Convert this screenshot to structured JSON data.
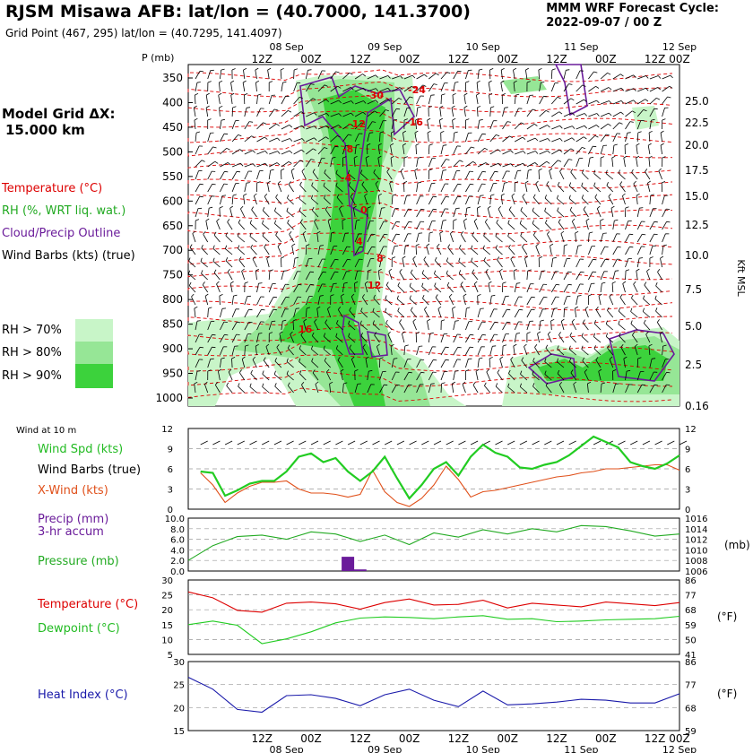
{
  "header": {
    "title": "RJSM Misawa AFB:  lat/lon = (40.7000, 141.3700)",
    "subtitle": "Grid Point (467, 295) lat/lon = (40.7295, 141.4097)",
    "cycle_line1": "MMM WRF Forecast Cycle:",
    "cycle_line2": "2022-09-07 / 00  Z"
  },
  "left_legend": {
    "model_grid_line1": "Model Grid ΔX:",
    "model_grid_line2": "15.000 km",
    "temperature": "Temperature (°C)",
    "rh": "RH (%, WRT liq. wat.)",
    "cloud": "Cloud/Precip Outline",
    "barbs": "Wind Barbs (kts) (true)",
    "rh70": "RH > 70%",
    "rh80": "RH > 80%",
    "rh90": "RH > 90%",
    "wind10m": "Wind at 10 m",
    "wind_spd": "Wind Spd (kts)",
    "wind_barbs": "Wind Barbs (true)",
    "xwind": "X-Wind (kts)",
    "precip1": "Precip (mm)",
    "precip2": "3-hr accum",
    "pressure": "Pressure (mb)",
    "temp2": "Temperature (°C)",
    "dew": "Dewpoint (°C)",
    "heat": "Heat Index (°C)"
  },
  "axes": {
    "p_label": "P  (mb)",
    "kft_label": "Kft MSL",
    "mb_label": "(mb)",
    "degF_label": "(°F)",
    "time_top_ticks": [
      "12Z",
      "00Z",
      "12Z",
      "00Z",
      "12Z",
      "00Z",
      "12Z",
      "00Z",
      "12Z",
      "00Z"
    ],
    "dates": [
      "08 Sep",
      "09 Sep",
      "10 Sep",
      "11 Sep",
      "12 Sep"
    ],
    "pressure_levels": [
      "350",
      "400",
      "450",
      "500",
      "550",
      "600",
      "650",
      "700",
      "750",
      "800",
      "850",
      "900",
      "950",
      "1000"
    ],
    "kft_ticks": [
      "25.0",
      "22.5",
      "20.0",
      "17.5",
      "15.0",
      "12.5",
      "10.0",
      "7.5",
      "5.0",
      "2.5",
      "0.16"
    ],
    "wind_left": [
      "12",
      "9",
      "6",
      "3",
      "0"
    ],
    "wind_right": [
      "12",
      "9",
      "6",
      "3",
      "0"
    ],
    "precip_left": [
      "10.0",
      "8.0",
      "6.0",
      "4.0",
      "2.0",
      "0.0"
    ],
    "pressure_right": [
      "1016",
      "1014",
      "1012",
      "1010",
      "1008",
      "1006"
    ],
    "temp_left": [
      "30",
      "25",
      "20",
      "15",
      "10",
      "5"
    ],
    "temp_right": [
      "86",
      "77",
      "68",
      "59",
      "50",
      "41"
    ],
    "heat_left": [
      "30",
      "25",
      "20",
      "15"
    ],
    "heat_right": [
      "86",
      "77",
      "68",
      "59"
    ]
  },
  "colors": {
    "temperature": "#dd0000",
    "rh70": "#c8f5c8",
    "rh80": "#96e696",
    "rh90": "#3cd23c",
    "cloud": "#6a1b9a",
    "wind_spd": "#22cc22",
    "xwind": "#e0501a",
    "pressure": "#22aa22",
    "precip": "#6a1b9a",
    "dewpoint": "#22cc22",
    "heat": "#1a1aaa"
  },
  "temp_contour_labels": [
    "-30",
    "-24",
    "-16",
    "-12",
    "-8",
    "-4",
    "0",
    "4",
    "8",
    "12",
    "16"
  ],
  "chart_data": [
    {
      "type": "line",
      "title": "Wind at 10 m",
      "x": [
        3,
        6,
        9,
        12,
        15,
        18,
        21,
        24,
        27,
        30,
        33,
        36,
        39,
        42,
        45,
        48,
        51,
        54,
        57,
        60,
        63,
        66,
        69,
        72,
        75,
        78,
        81,
        84,
        87,
        90,
        93,
        96,
        99,
        102,
        105,
        108,
        111,
        114,
        117,
        120
      ],
      "ylim": [
        0,
        12
      ],
      "series": [
        {
          "name": "Wind Spd (kts)",
          "values": [
            5.6,
            5.4,
            2.0,
            2.8,
            3.8,
            4.2,
            4.2,
            5.6,
            7.8,
            8.3,
            7.0,
            7.6,
            5.6,
            4.2,
            5.6,
            7.8,
            4.6,
            1.6,
            3.6,
            6.0,
            7.0,
            5.0,
            7.8,
            9.6,
            8.4,
            7.8,
            6.2,
            6.0,
            6.6,
            7.0,
            8.0,
            9.4,
            10.8,
            10.0,
            9.2,
            7.0,
            6.4,
            6.0,
            6.8,
            8.0
          ]
        },
        {
          "name": "X-Wind (kts)",
          "values": [
            5.4,
            3.6,
            1.0,
            2.4,
            3.4,
            4.0,
            4.0,
            4.2,
            3.0,
            2.4,
            2.4,
            2.2,
            1.8,
            2.2,
            5.8,
            2.6,
            1.0,
            0.4,
            1.6,
            3.6,
            6.4,
            4.4,
            1.8,
            2.6,
            2.8,
            3.2,
            3.6,
            4.0,
            4.4,
            4.8,
            5.0,
            5.4,
            5.6,
            6.0,
            6.0,
            6.2,
            6.4,
            6.6,
            6.6,
            5.8
          ]
        }
      ]
    },
    {
      "type": "bar",
      "title": "Precip (mm) 3-hr accum",
      "x": [
        39,
        42
      ],
      "values": [
        2.7,
        0.3
      ],
      "ylim": [
        0,
        10
      ]
    },
    {
      "type": "line",
      "title": "Pressure (mb)",
      "x": [
        0,
        6,
        12,
        18,
        24,
        30,
        36,
        42,
        48,
        54,
        60,
        66,
        72,
        78,
        84,
        90,
        96,
        102,
        108,
        114,
        120
      ],
      "values": [
        1008.0,
        1010.8,
        1012.5,
        1012.8,
        1012.0,
        1013.4,
        1013.0,
        1011.6,
        1012.8,
        1011.0,
        1013.2,
        1012.4,
        1013.8,
        1013.0,
        1014.0,
        1013.4,
        1014.6,
        1014.4,
        1013.6,
        1012.6,
        1013.0
      ],
      "ylim": [
        1006,
        1016
      ]
    },
    {
      "type": "line",
      "title": "Temperature / Dewpoint",
      "x": [
        0,
        6,
        12,
        18,
        24,
        30,
        36,
        42,
        48,
        54,
        60,
        66,
        72,
        78,
        84,
        90,
        96,
        102,
        108,
        114,
        120
      ],
      "ylim": [
        5,
        30
      ],
      "series": [
        {
          "name": "Temperature (°C)",
          "values": [
            26.0,
            24.0,
            19.8,
            19.2,
            22.2,
            22.6,
            22.0,
            20.2,
            22.4,
            23.6,
            21.6,
            21.8,
            23.2,
            20.6,
            22.2,
            21.6,
            21.0,
            22.6,
            22.0,
            21.4,
            22.4
          ]
        },
        {
          "name": "Dewpoint (°C)",
          "values": [
            15.0,
            16.2,
            14.8,
            8.6,
            10.2,
            12.6,
            15.6,
            17.2,
            17.6,
            17.4,
            17.0,
            17.6,
            18.0,
            16.8,
            17.0,
            16.0,
            16.2,
            16.6,
            16.8,
            17.0,
            17.8
          ]
        }
      ]
    },
    {
      "type": "line",
      "title": "Heat Index (°C)",
      "x": [
        0,
        6,
        12,
        18,
        24,
        30,
        36,
        42,
        48,
        54,
        60,
        66,
        72,
        78,
        84,
        90,
        96,
        102,
        108,
        114,
        120
      ],
      "ylim": [
        15,
        30
      ],
      "series": [
        {
          "name": "Heat Index (°C)",
          "values": [
            26.6,
            24.0,
            19.6,
            19.0,
            22.6,
            22.8,
            22.0,
            20.4,
            22.8,
            24.0,
            21.6,
            20.2,
            23.6,
            20.6,
            20.8,
            21.2,
            21.8,
            21.6,
            21.0,
            21.0,
            23.0
          ]
        }
      ]
    }
  ]
}
